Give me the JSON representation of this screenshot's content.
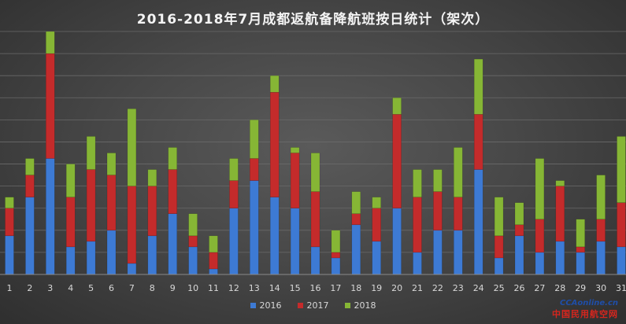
{
  "chart_data": {
    "type": "bar",
    "stacked": true,
    "title": "2016-2018年7月成都返航备降航班按日统计（架次）",
    "categories": [
      "1",
      "2",
      "3",
      "4",
      "5",
      "6",
      "7",
      "8",
      "9",
      "10",
      "11",
      "12",
      "13",
      "14",
      "15",
      "16",
      "17",
      "18",
      "19",
      "20",
      "21",
      "22",
      "23",
      "24",
      "25",
      "26",
      "27",
      "28",
      "29",
      "30",
      "31"
    ],
    "series": [
      {
        "name": "2016",
        "color": "#3d7ad4",
        "values": [
          7,
          14,
          21,
          5,
          6,
          8,
          2,
          7,
          11,
          5,
          1,
          12,
          17,
          14,
          12,
          5,
          3,
          9,
          6,
          12,
          4,
          8,
          8,
          19,
          3,
          7,
          4,
          6,
          4,
          6,
          5
        ]
      },
      {
        "name": "2017",
        "color": "#c42b2b",
        "values": [
          5,
          4,
          19,
          9,
          13,
          10,
          14,
          9,
          8,
          2,
          3,
          5,
          4,
          19,
          10,
          10,
          1,
          2,
          6,
          17,
          10,
          7,
          6,
          10,
          4,
          2,
          6,
          10,
          1,
          4,
          8
        ]
      },
      {
        "name": "2018",
        "color": "#86b635",
        "values": [
          2,
          3,
          4,
          6,
          6,
          4,
          14,
          3,
          4,
          4,
          3,
          4,
          7,
          3,
          1,
          7,
          4,
          4,
          2,
          3,
          5,
          4,
          9,
          10,
          7,
          4,
          11,
          1,
          5,
          8,
          12
        ]
      }
    ],
    "ylim": [
      0,
      44
    ],
    "grid": true,
    "legend_position": "bottom"
  },
  "watermark": {
    "line1": "CCAonline.cn",
    "line2": "中国民用航空网"
  }
}
